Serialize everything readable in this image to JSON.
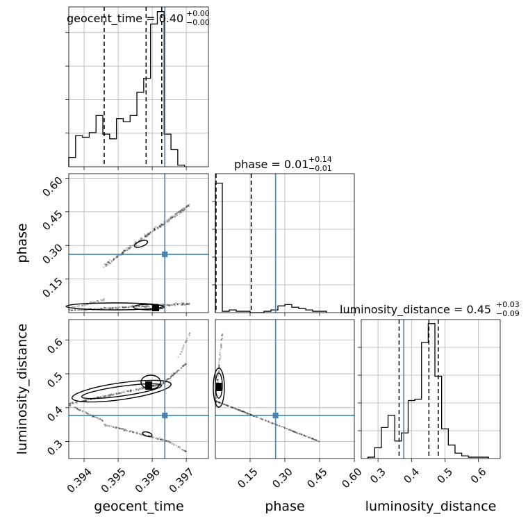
{
  "chart_data": [
    {
      "type": "histogram",
      "panel": "geocent_time-marginal",
      "title": {
        "main": "geocent_time = 0.40",
        "sup": "+0.00",
        "sub": "−0.00"
      },
      "xlim": [
        0.39355,
        0.39765
      ],
      "ylim": [
        0,
        1
      ],
      "grid": true,
      "bins": [
        0.39355,
        0.39375,
        0.39395,
        0.39415,
        0.39435,
        0.39455,
        0.39475,
        0.39495,
        0.39515,
        0.39535,
        0.39555,
        0.39575,
        0.39595,
        0.39615,
        0.39635,
        0.39655,
        0.39675,
        0.39695
      ],
      "values": [
        0.06,
        0.2,
        0.19,
        0.22,
        0.33,
        0.21,
        0.18,
        0.31,
        0.29,
        0.33,
        0.48,
        0.57,
        0.92,
        1.0,
        0.21,
        0.11,
        0.01
      ],
      "quantiles": [
        0.39459,
        0.39582,
        0.39628
      ],
      "truth": 0.39637
    },
    {
      "type": "histogram",
      "panel": "phase-marginal",
      "title": {
        "main": "phase = 0.01",
        "sup": "+0.14",
        "sub": "−0.01"
      },
      "xlim": [
        0.0,
        0.6
      ],
      "ylim": [
        0,
        1
      ],
      "grid": true,
      "bins": [
        0.0,
        0.03,
        0.06,
        0.09,
        0.12,
        0.15,
        0.18,
        0.21,
        0.24,
        0.27,
        0.3,
        0.33,
        0.36,
        0.39,
        0.42,
        0.45,
        0.48
      ],
      "values": [
        0.96,
        0.01,
        0.02,
        0.01,
        0.01,
        0.0,
        0.0,
        0.01,
        0.02,
        0.05,
        0.06,
        0.04,
        0.03,
        0.02,
        0.01,
        0.01
      ],
      "quantiles": [
        0.003,
        0.155
      ],
      "truth": 0.26
    },
    {
      "type": "histogram",
      "panel": "luminosity_distance-marginal",
      "title": {
        "main": "luminosity_distance = 0.45",
        "sup": "+0.03",
        "sub": "−0.09"
      },
      "xlim": [
        0.25,
        0.665
      ],
      "ylim": [
        0,
        1
      ],
      "grid": true,
      "bins": [
        0.27,
        0.29,
        0.31,
        0.33,
        0.35,
        0.37,
        0.39,
        0.41,
        0.43,
        0.45,
        0.47,
        0.49,
        0.51,
        0.53,
        0.55,
        0.57,
        0.59,
        0.61,
        0.63
      ],
      "values": [
        0.01,
        0.08,
        0.23,
        0.32,
        0.13,
        0.19,
        0.43,
        0.44,
        0.86,
        1.0,
        0.61,
        0.22,
        0.1,
        0.04,
        0.02,
        0.01,
        0.01,
        0.01
      ],
      "quantiles": [
        0.363,
        0.452,
        0.48
      ],
      "truth": 0.377
    },
    {
      "type": "scatter",
      "panel": "geocent_time-vs-phase",
      "xlim": [
        0.39355,
        0.39765
      ],
      "ylim": [
        0.0,
        0.62
      ],
      "grid": true,
      "truth": [
        0.39637,
        0.26
      ],
      "clusters": [
        {
          "x": [
            0.3946,
            0.3971
          ],
          "y": [
            0.21,
            0.48
          ],
          "n": 260,
          "spread": 0.013
        },
        {
          "x": [
            0.3936,
            0.3971
          ],
          "y": [
            0.01,
            0.04
          ],
          "n": 220,
          "spread": 0.01
        },
        {
          "x": [
            0.3936,
            0.3946
          ],
          "y": [
            0.02,
            0.06
          ],
          "n": 40,
          "spread": 0.012
        }
      ]
    },
    {
      "type": "scatter",
      "panel": "geocent_time-vs-luminosity_distance",
      "xlim": [
        0.39355,
        0.39765
      ],
      "ylim": [
        0.25,
        0.66
      ],
      "grid": true,
      "truth": [
        0.39637,
        0.377
      ],
      "clusters": [
        {
          "x": [
            0.3935,
            0.3963
          ],
          "y": [
            0.41,
            0.47
          ],
          "n": 200,
          "spread": 0.008
        },
        {
          "x": [
            0.3963,
            0.397
          ],
          "y": [
            0.47,
            0.53
          ],
          "n": 70,
          "spread": 0.008
        },
        {
          "x": [
            0.3935,
            0.3946
          ],
          "y": [
            0.41,
            0.36
          ],
          "n": 60,
          "spread": 0.006
        },
        {
          "x": [
            0.3946,
            0.3965
          ],
          "y": [
            0.35,
            0.3
          ],
          "n": 110,
          "spread": 0.006
        },
        {
          "x": [
            0.3965,
            0.397
          ],
          "y": [
            0.3,
            0.27
          ],
          "n": 25,
          "spread": 0.006
        },
        {
          "x": [
            0.3967,
            0.3971
          ],
          "y": [
            0.53,
            0.62
          ],
          "n": 20,
          "spread": 0.006
        }
      ]
    },
    {
      "type": "scatter",
      "panel": "phase-vs-luminosity_distance",
      "xlim": [
        0.0,
        0.6
      ],
      "ylim": [
        0.25,
        0.66
      ],
      "grid": true,
      "truth": [
        0.26,
        0.377
      ],
      "clusters": [
        {
          "x": [
            0.0,
            0.45
          ],
          "y": [
            0.42,
            0.3
          ],
          "n": 230,
          "spread": 0.004
        },
        {
          "x": [
            0.0,
            0.03
          ],
          "y": [
            0.4,
            0.62
          ],
          "n": 80,
          "spread": 0.006
        }
      ]
    }
  ],
  "labels": {
    "x_geocent_time": "geocent_time",
    "x_phase": "phase",
    "x_luminosity_distance": "luminosity_distance",
    "y_phase": "phase",
    "y_luminosity_distance": "luminosity_distance"
  },
  "ticks": {
    "geocent_time": [
      "0.394",
      "0.395",
      "0.396",
      "0.397"
    ],
    "geocent_time_values": [
      0.394,
      0.395,
      0.396,
      0.397
    ],
    "phase_y": [
      "0.15",
      "0.30",
      "0.45",
      "0.60"
    ],
    "phase_y_values": [
      0.15,
      0.3,
      0.45,
      0.6
    ],
    "phase_x": [
      "0.15",
      "0.30",
      "0.45",
      "0.60"
    ],
    "phase_x_values": [
      0.15,
      0.3,
      0.45,
      0.6
    ],
    "lumdist_y": [
      "0.3",
      "0.4",
      "0.5",
      "0.6"
    ],
    "lumdist_y_values": [
      0.3,
      0.4,
      0.5,
      0.6
    ],
    "lumdist_x": [
      "0.3",
      "0.4",
      "0.5",
      "0.6"
    ],
    "lumdist_x_values": [
      0.3,
      0.4,
      0.5,
      0.6
    ]
  },
  "colors": {
    "truth": "#4682b4",
    "hist": "#000000",
    "grid": "#b0b0b0"
  }
}
